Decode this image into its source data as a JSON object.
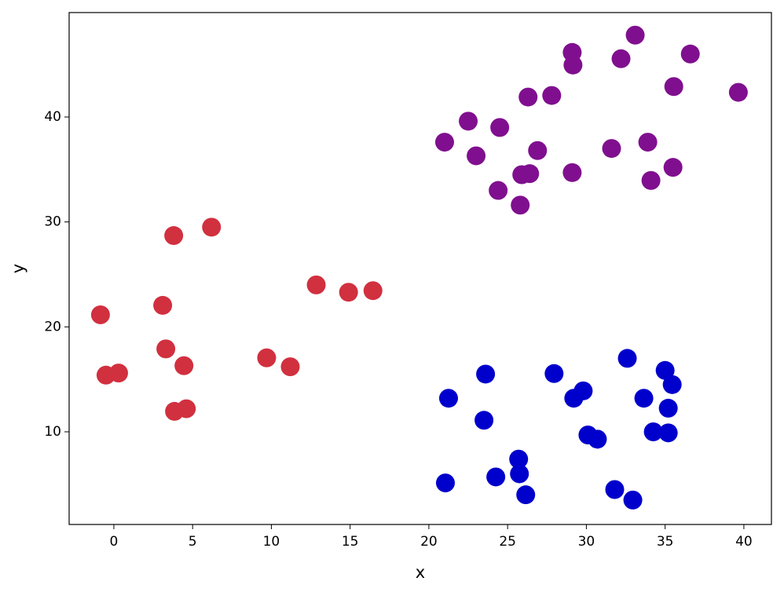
{
  "chart_data": {
    "type": "scatter",
    "xlabel": "x",
    "ylabel": "y",
    "xlim": [
      -2.84,
      41.75
    ],
    "ylim": [
      1.17,
      49.95
    ],
    "xticks": [
      0,
      5,
      10,
      15,
      20,
      25,
      30,
      35,
      40
    ],
    "yticks": [
      10,
      20,
      30,
      40
    ],
    "series": [
      {
        "color": "#d1303f",
        "x": [
          -0.85,
          -0.5,
          0.3,
          3.8,
          6.2,
          3.1,
          3.3,
          4.45,
          3.85,
          4.6,
          9.7,
          11.2,
          12.85,
          14.9,
          16.45
        ],
        "y": [
          21.15,
          15.4,
          15.6,
          28.7,
          29.5,
          22.05,
          17.9,
          16.3,
          11.95,
          12.2,
          17.05,
          16.2,
          24.0,
          23.3,
          23.45
        ]
      },
      {
        "color": "#800f8f",
        "x": [
          21.0,
          22.5,
          23.0,
          24.5,
          24.4,
          25.8,
          25.9,
          26.4,
          26.9,
          26.3,
          27.8,
          29.1,
          29.15,
          29.1,
          31.6,
          32.2,
          33.1,
          33.9,
          34.1,
          35.5,
          35.55,
          36.6,
          39.65
        ],
        "y": [
          37.6,
          39.6,
          36.3,
          39.0,
          33.0,
          31.6,
          34.5,
          34.6,
          36.8,
          41.9,
          42.05,
          46.15,
          44.95,
          34.7,
          37.0,
          45.55,
          47.8,
          37.6,
          33.95,
          35.2,
          42.9,
          46.0,
          42.35
        ]
      },
      {
        "color": "#0000cc",
        "x": [
          21.05,
          21.25,
          23.5,
          23.6,
          24.25,
          25.7,
          25.75,
          26.15,
          27.95,
          29.2,
          29.8,
          30.1,
          30.7,
          31.8,
          32.6,
          32.95,
          33.65,
          34.25,
          35.0,
          35.2,
          35.2,
          35.45
        ],
        "y": [
          5.13,
          13.2,
          11.1,
          15.5,
          5.7,
          7.4,
          6.0,
          4.0,
          15.55,
          13.2,
          13.9,
          9.7,
          9.3,
          4.5,
          17.0,
          3.5,
          13.2,
          10.0,
          15.85,
          12.25,
          9.9,
          14.5
        ]
      }
    ]
  }
}
